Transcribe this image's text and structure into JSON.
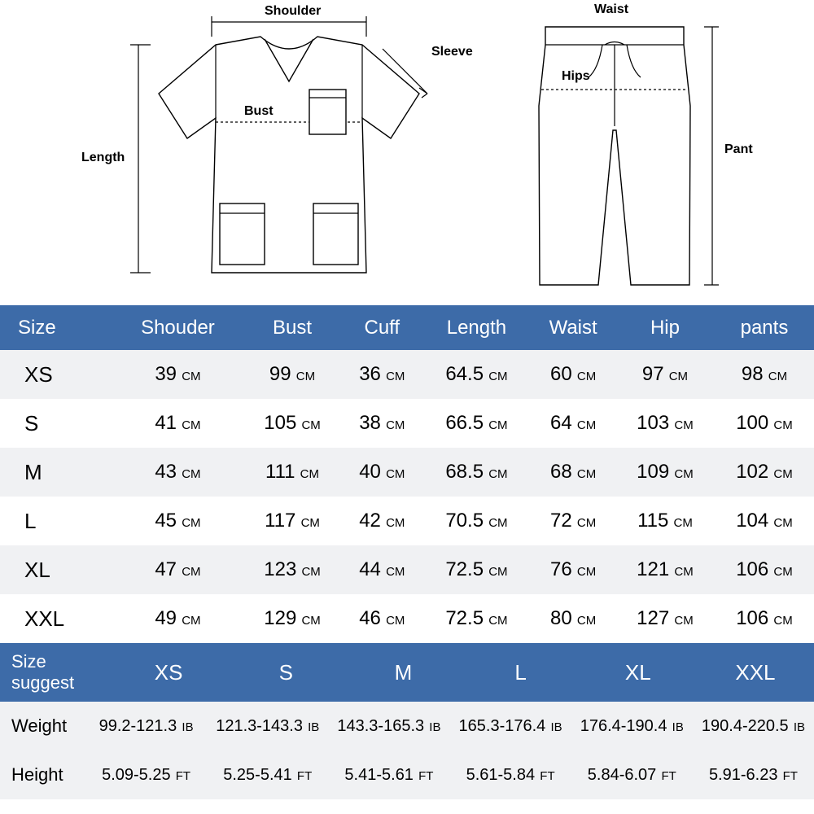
{
  "diagram": {
    "shirt": {
      "shoulder": "Shoulder",
      "sleeve": "Sleeve",
      "bust": "Bust",
      "length": "Length"
    },
    "pants": {
      "waist": "Waist",
      "hips": "Hips",
      "pant": "Pant"
    }
  },
  "table": {
    "headers": [
      "Size",
      "Shouder",
      "Bust",
      "Cuff",
      "Length",
      "Waist",
      "Hip",
      "pants"
    ],
    "rows": [
      {
        "size": "XS",
        "shoulder": "39",
        "bust": "99",
        "cuff": "36",
        "length": "64.5",
        "waist": "60",
        "hip": "97",
        "pants": "98"
      },
      {
        "size": "S",
        "shoulder": "41",
        "bust": "105",
        "cuff": "38",
        "length": "66.5",
        "waist": "64",
        "hip": "103",
        "pants": "100"
      },
      {
        "size": "M",
        "shoulder": "43",
        "bust": "111",
        "cuff": "40",
        "length": "68.5",
        "waist": "68",
        "hip": "109",
        "pants": "102"
      },
      {
        "size": "L",
        "shoulder": "45",
        "bust": "117",
        "cuff": "42",
        "length": "70.5",
        "waist": "72",
        "hip": "115",
        "pants": "104"
      },
      {
        "size": "XL",
        "shoulder": "47",
        "bust": "123",
        "cuff": "44",
        "length": "72.5",
        "waist": "76",
        "hip": "121",
        "pants": "106"
      },
      {
        "size": "XXL",
        "shoulder": "49",
        "bust": "129",
        "cuff": "46",
        "length": "72.5",
        "waist": "80",
        "hip": "127",
        "pants": "106"
      }
    ],
    "unit": "CM",
    "colors": {
      "header_bg": "#3d6ba8",
      "header_text": "#ffffff",
      "row_odd": "#f0f1f3",
      "row_even": "#ffffff"
    }
  },
  "suggest": {
    "label": "Size\nsuggest",
    "sizes": [
      "XS",
      "S",
      "M",
      "L",
      "XL",
      "XXL"
    ],
    "weight_label": "Weight",
    "weight_unit": "IB",
    "weights": [
      "99.2-121.3",
      "121.3-143.3",
      "143.3-165.3",
      "165.3-176.4",
      "176.4-190.4",
      "190.4-220.5"
    ],
    "height_label": "Height",
    "height_unit": "FT",
    "heights": [
      "5.09-5.25",
      "5.25-5.41",
      "5.41-5.61",
      "5.61-5.84",
      "5.84-6.07",
      "5.91-6.23"
    ]
  }
}
